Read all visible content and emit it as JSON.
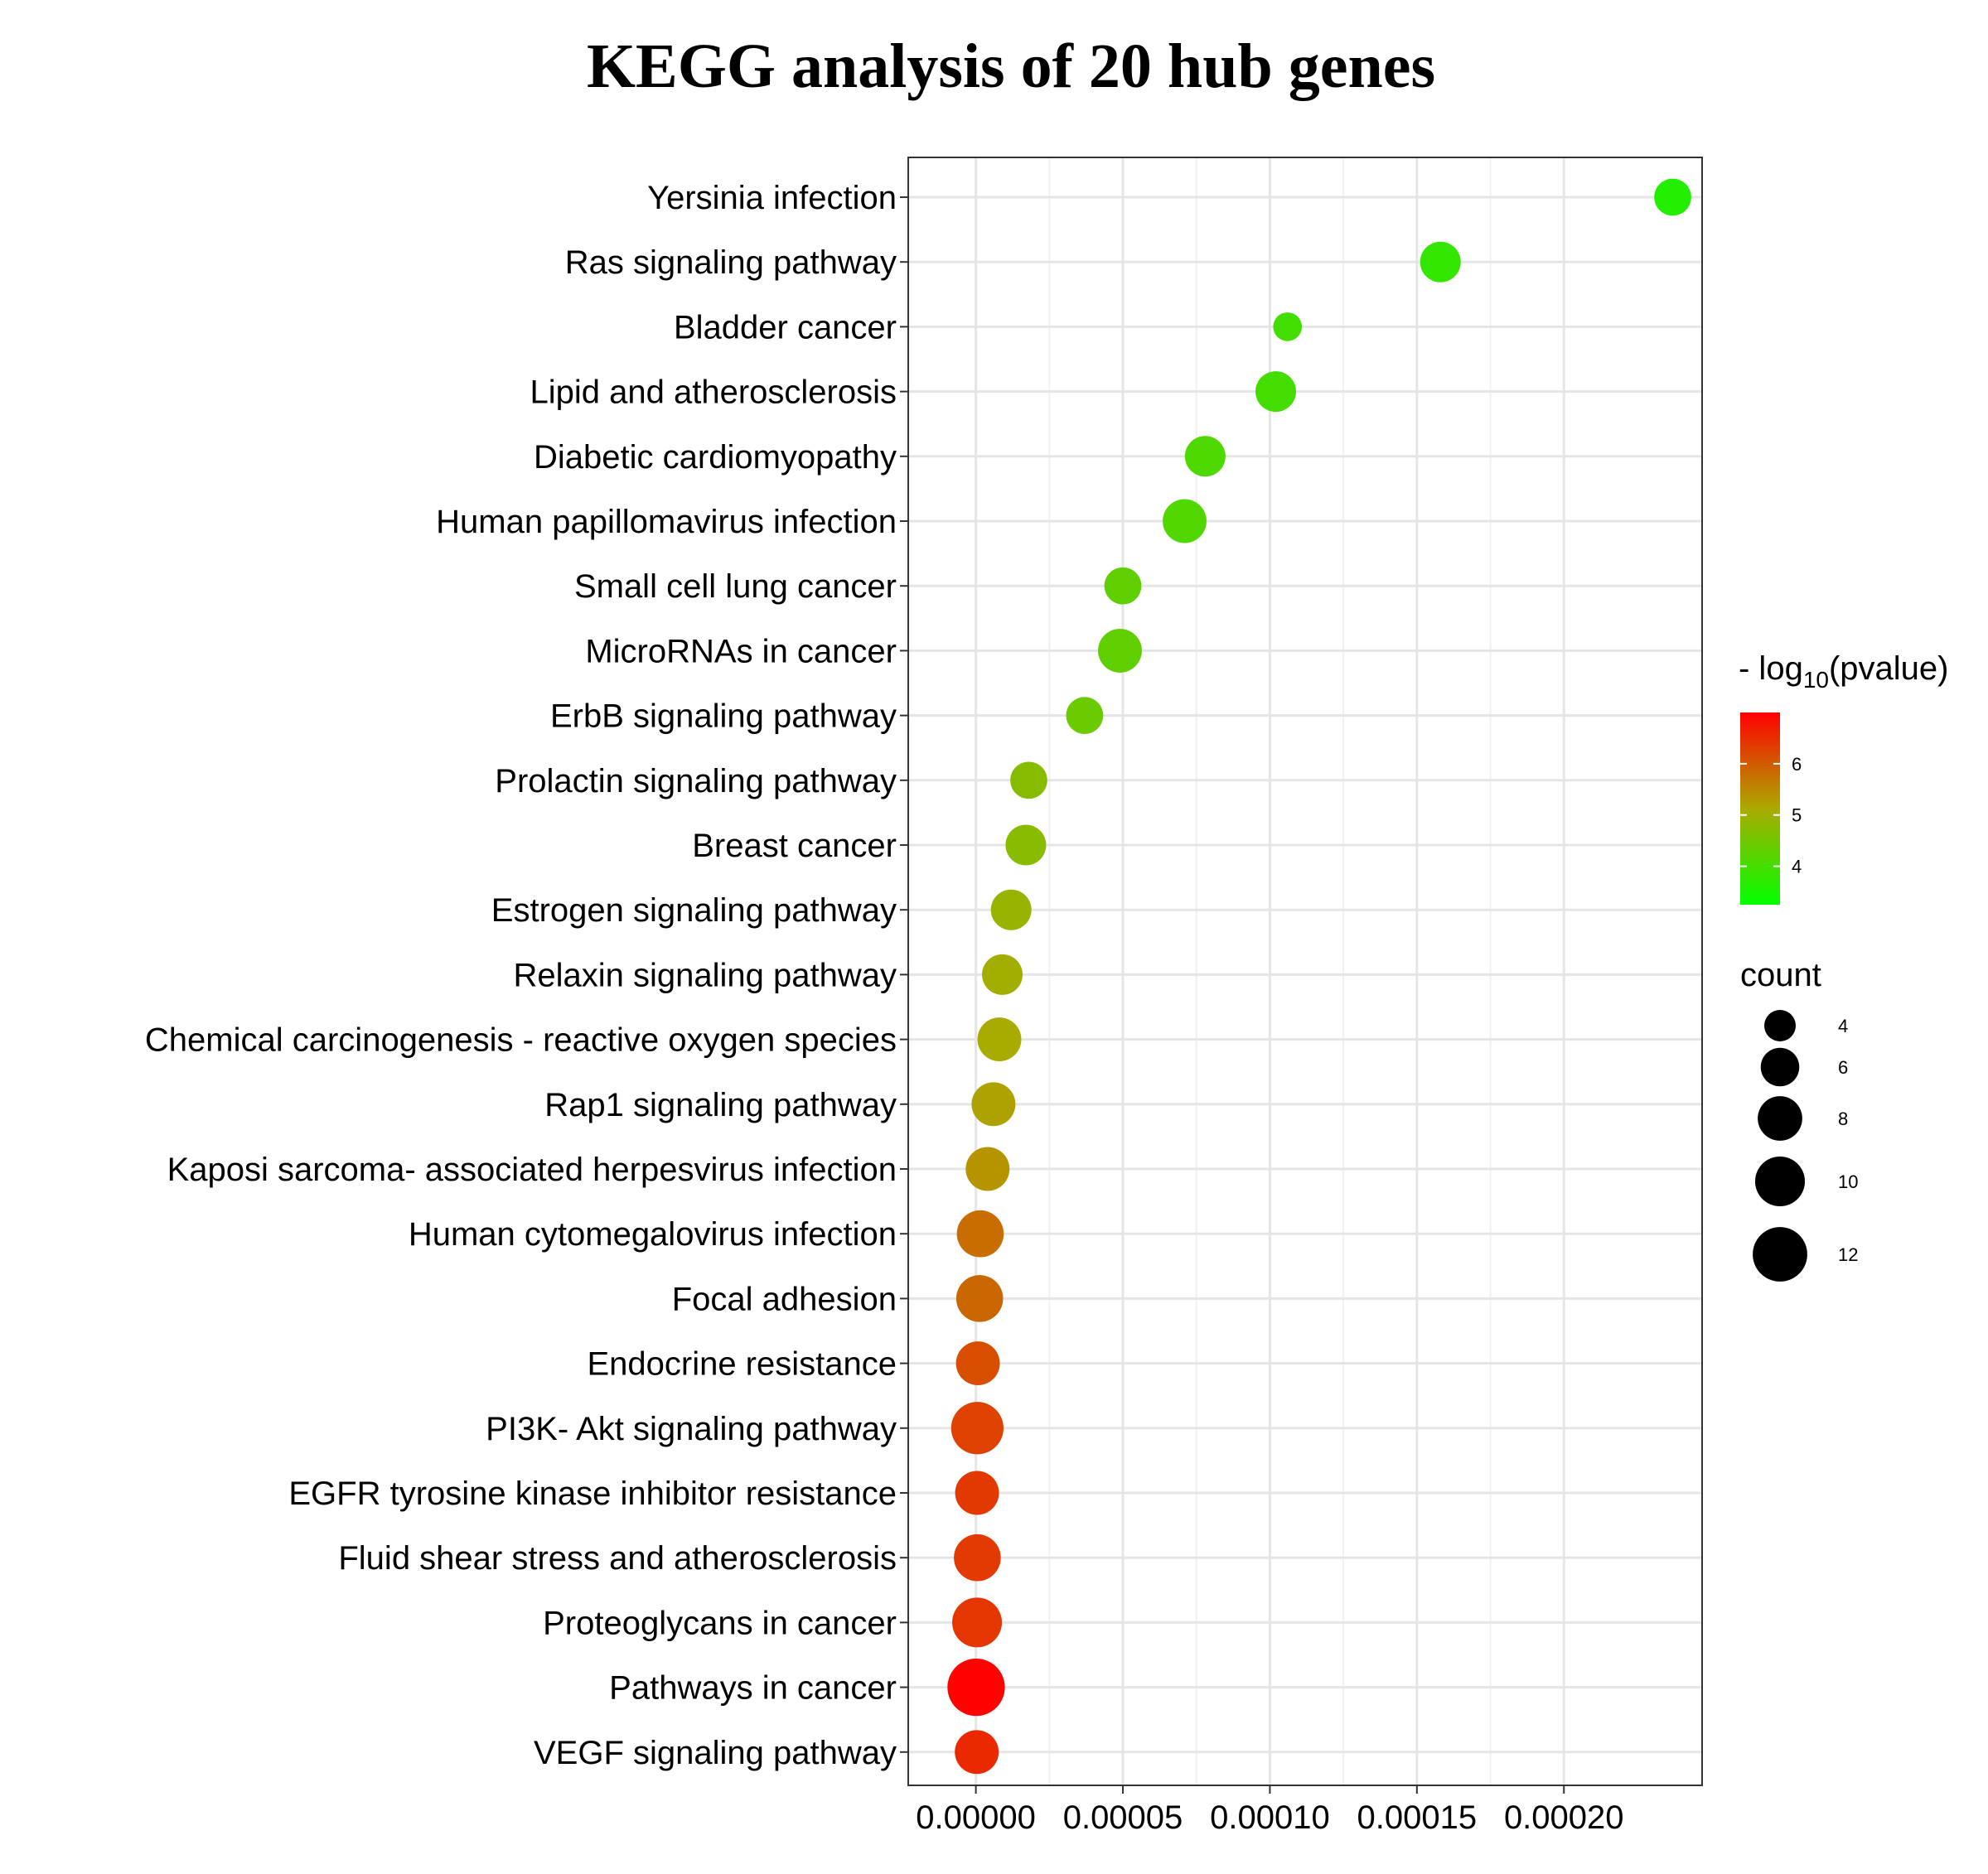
{
  "chart_data": {
    "type": "scatter",
    "title": "KEGG analysis of 20 hub genes",
    "xlabel": "",
    "ylabel": "",
    "xlim": [
      -2.3e-05,
      0.000247
    ],
    "grid": true,
    "x_ticks": [
      {
        "value": 0.0,
        "label": "0.00000"
      },
      {
        "value": 5e-05,
        "label": "0.00005"
      },
      {
        "value": 0.0001,
        "label": "0.00010"
      },
      {
        "value": 0.00015,
        "label": "0.00015"
      },
      {
        "value": 0.0002,
        "label": "0.00020"
      }
    ],
    "categories": [
      "Yersinia infection",
      "Ras signaling pathway",
      "Bladder cancer",
      "Lipid and atherosclerosis",
      "Diabetic cardiomyopathy",
      "Human papillomavirus infection",
      "Small cell lung cancer",
      "MicroRNAs in cancer",
      "ErbB signaling pathway",
      "Prolactin signaling pathway",
      "Breast cancer",
      "Estrogen signaling pathway",
      "Relaxin signaling pathway",
      "Chemical carcinogenesis -  reactive oxygen species",
      "Rap1 signaling pathway",
      "Kaposi sarcoma- associated herpesvirus infection",
      "Human cytomegalovirus infection",
      "Focal adhesion",
      "Endocrine resistance",
      "PI3K- Akt signaling pathway",
      "EGFR tyrosine kinase inhibitor resistance",
      "Fluid shear stress and atherosclerosis",
      "Proteoglycans in cancer",
      "Pathways in cancer",
      "VEGF signaling pathway"
    ],
    "x": [
      0.000237,
      0.000158,
      0.000106,
      0.000102,
      7.8e-05,
      7.1e-05,
      5e-05,
      4.9e-05,
      3.7e-05,
      1.8e-05,
      1.7e-05,
      1.2e-05,
      9e-06,
      8e-06,
      6e-06,
      4e-06,
      1.5e-06,
      1.3e-06,
      7e-07,
      5e-07,
      4e-07,
      5e-07,
      4e-07,
      1e-07,
      3e-07
    ],
    "count": [
      5,
      6,
      3,
      6,
      6,
      7,
      5,
      7,
      5,
      5,
      6,
      6,
      6,
      7,
      7,
      7,
      8,
      8,
      7,
      10,
      7,
      8,
      9,
      12,
      7
    ],
    "neg_log10_pvalue": [
      3.62,
      3.8,
      3.98,
      3.99,
      4.1,
      4.14,
      4.3,
      4.3,
      4.43,
      4.74,
      4.76,
      4.93,
      5.04,
      5.1,
      5.21,
      5.37,
      5.8,
      5.86,
      6.14,
      6.28,
      6.38,
      6.36,
      6.42,
      6.97,
      6.56
    ],
    "color_legend": {
      "title_prefix": "- log",
      "title_subscript": "10",
      "title_suffix": "(pvalue)",
      "min": 3.25,
      "max": 7.0,
      "low_color": "#00ff00",
      "mid_color": "#aaaa00",
      "high_color": "#ff0000",
      "ticks": [
        {
          "value": 4,
          "label": "4"
        },
        {
          "value": 5,
          "label": "5"
        },
        {
          "value": 6,
          "label": "6"
        }
      ]
    },
    "size_legend": {
      "title": "count",
      "entries": [
        {
          "value": 4,
          "label": "4"
        },
        {
          "value": 6,
          "label": "6"
        },
        {
          "value": 8,
          "label": "8"
        },
        {
          "value": 10,
          "label": "10"
        },
        {
          "value": 12,
          "label": "12"
        }
      ]
    },
    "legend_position": "right"
  }
}
